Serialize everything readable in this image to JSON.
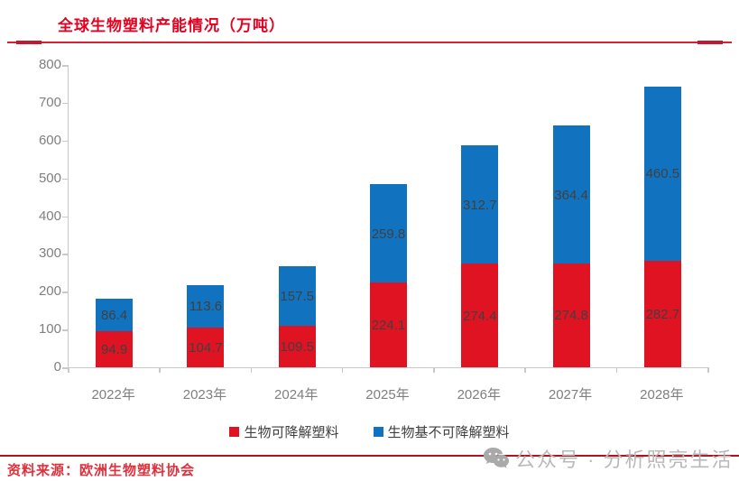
{
  "title": "全球生物塑料产能情况（万吨）",
  "colors": {
    "red": "#e01322",
    "blue": "#1173c0",
    "title_red": "#e60020",
    "axis": "#c9c9c9",
    "axis_label": "#7f7f7f",
    "data_label": "#404040",
    "footer_red": "#e0303c",
    "watermark_gray": "#b9b9b9"
  },
  "chart_data": {
    "type": "bar",
    "stacked": true,
    "title": "全球生物塑料产能情况（万吨）",
    "categories": [
      "2022年",
      "2023年",
      "2024年",
      "2025年",
      "2026年",
      "2027年",
      "2028年"
    ],
    "series": [
      {
        "name": "生物可降解塑料",
        "color_key": "red",
        "values": [
          94.9,
          104.7,
          109.5,
          224.1,
          274.4,
          274.8,
          282.7
        ]
      },
      {
        "name": "生物基不可降解塑料",
        "color_key": "blue",
        "values": [
          86.4,
          113.6,
          157.5,
          259.8,
          312.7,
          364.4,
          460.5
        ]
      }
    ],
    "xlabel": "",
    "ylabel": "",
    "ylim": [
      0,
      800
    ],
    "ytick_step": 100,
    "grid": false,
    "legend_position": "bottom"
  },
  "footer": {
    "source": "资料来源：欧洲生物塑料协会"
  },
  "watermark": {
    "icon": "wechat-icon",
    "text": "公众号 · 分析照亮生活"
  }
}
